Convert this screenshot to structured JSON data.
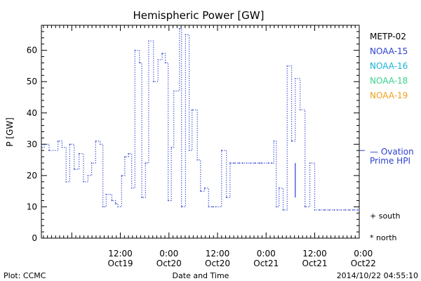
{
  "chart_data": {
    "type": "line",
    "title": "Hemispheric Power [GW]",
    "xlabel": "Date and Time",
    "ylabel": "P [GW]",
    "x_unit": "hours since 2014-10-18 00:00 UT",
    "xlim": [
      16.5,
      95
    ],
    "ylim": [
      0,
      68
    ],
    "yticks": [
      0,
      10,
      20,
      30,
      40,
      50,
      60
    ],
    "xticks": [
      {
        "x": 36,
        "line1": "12:00",
        "line2": "Oct19"
      },
      {
        "x": 48,
        "line1": "0:00",
        "line2": "Oct20"
      },
      {
        "x": 60,
        "line1": "12:00",
        "line2": "Oct20"
      },
      {
        "x": 72,
        "line1": "0:00",
        "line2": "Oct21"
      },
      {
        "x": 84,
        "line1": "12:00",
        "line2": "Oct21"
      },
      {
        "x": 96,
        "line1": "0:00",
        "line2": "Oct22"
      }
    ],
    "legend": {
      "placement": "right",
      "satellites": [
        {
          "name": "METP-02",
          "color": "#000000"
        },
        {
          "name": "NOAA-15",
          "color": "#2b3fd0"
        },
        {
          "name": "NOAA-16",
          "color": "#18b4d8"
        },
        {
          "name": "NOAA-18",
          "color": "#3ad28a"
        },
        {
          "name": "NOAA-19",
          "color": "#f0a01e"
        }
      ],
      "ovation_line1": "— Ovation",
      "ovation_line2": "Prime HPI",
      "south_label": "+ south",
      "north_label": "* north"
    },
    "ovation_ref_value": 28,
    "series": [
      {
        "name": "NOAA-15",
        "color": "#2b3fd0",
        "style": "dotted",
        "x": [
          16.6,
          17.2,
          18.4,
          20.6,
          21.6,
          22.6,
          23.5,
          24.6,
          25.8,
          26.9,
          28.0,
          28.9,
          29.9,
          31.0,
          31.7,
          32.5,
          33.9,
          34.8,
          35.4,
          36.3,
          37.1,
          38.0,
          38.8,
          39.6,
          40.7,
          41.3,
          42.2,
          43.0,
          44.2,
          45.3,
          46.3,
          47.1,
          47.8,
          48.6,
          49.2,
          50.6,
          51.1,
          52.1,
          53.0,
          53.7,
          55.0,
          55.8,
          56.8,
          57.8,
          58.8,
          59.6,
          61.0,
          62.2,
          63.1,
          64.1,
          65.3,
          66.2,
          67.2,
          68.2,
          69.2,
          70.3,
          70.9,
          72.6,
          73.4,
          73.9,
          74.5,
          75.2,
          76.2,
          77.2,
          78.3,
          79.2,
          80.4,
          81.6,
          82.8,
          84.0,
          85.2,
          86.4,
          87.6,
          88.8,
          89.6,
          90.5,
          91.5,
          92.5,
          93.6,
          94.6,
          95.0
        ],
        "y": [
          29,
          30,
          28,
          31,
          29,
          18,
          30,
          22,
          27,
          18,
          20,
          24,
          31,
          30,
          10,
          14,
          12,
          11,
          10,
          20,
          26,
          27,
          16,
          60,
          56,
          13,
          24,
          63,
          50,
          57,
          59,
          56,
          12,
          29,
          47,
          67,
          10,
          65,
          28,
          41,
          25,
          15,
          16,
          10,
          10,
          10,
          28,
          13,
          24,
          24,
          24,
          24,
          24,
          24,
          24,
          24,
          24,
          24,
          24,
          31,
          10,
          16,
          9,
          55,
          31,
          51,
          41,
          10,
          24,
          9,
          9,
          9,
          9,
          9,
          9,
          9,
          9,
          9,
          9,
          9,
          9
        ]
      }
    ]
  },
  "footer": {
    "left": "Plot: CCMC",
    "timestamp": "2014/10/22 04:55:10"
  }
}
